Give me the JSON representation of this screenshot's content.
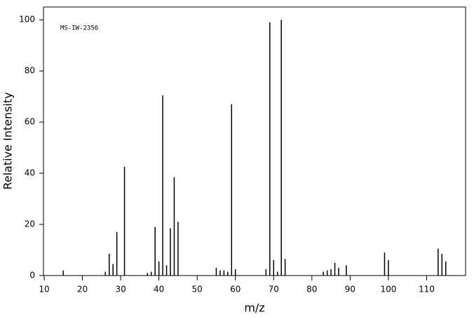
{
  "chart_data": {
    "type": "stem",
    "annotation": "MS-IW-2356",
    "x_label": "m/z",
    "y_label": "Relative Intensity",
    "x": [
      15,
      26,
      27,
      28,
      29,
      31,
      37,
      38,
      39,
      40,
      41,
      42,
      43,
      44,
      45,
      55,
      56,
      57,
      58,
      59,
      60,
      68,
      69,
      70,
      71,
      72,
      73,
      83,
      84,
      85,
      86,
      87,
      89,
      99,
      100,
      113,
      114,
      115
    ],
    "values": [
      2,
      1.5,
      8.5,
      4.5,
      17,
      42.5,
      1,
      1.5,
      19,
      5.5,
      70.5,
      4,
      18.5,
      38.5,
      21,
      3,
      2,
      2,
      1.5,
      67,
      2.5,
      2.5,
      99,
      6,
      1.5,
      100,
      6.5,
      1.5,
      2,
      2.5,
      5,
      3,
      4,
      9,
      6,
      10.5,
      8.5,
      5.5
    ],
    "color": "#000000",
    "xlim": [
      10,
      120
    ],
    "xticks": [
      10,
      20,
      30,
      40,
      50,
      60,
      70,
      80,
      90,
      100,
      110
    ],
    "ylim": [
      0,
      105
    ],
    "yticks": [
      0,
      20,
      40,
      60,
      80,
      100
    ]
  }
}
